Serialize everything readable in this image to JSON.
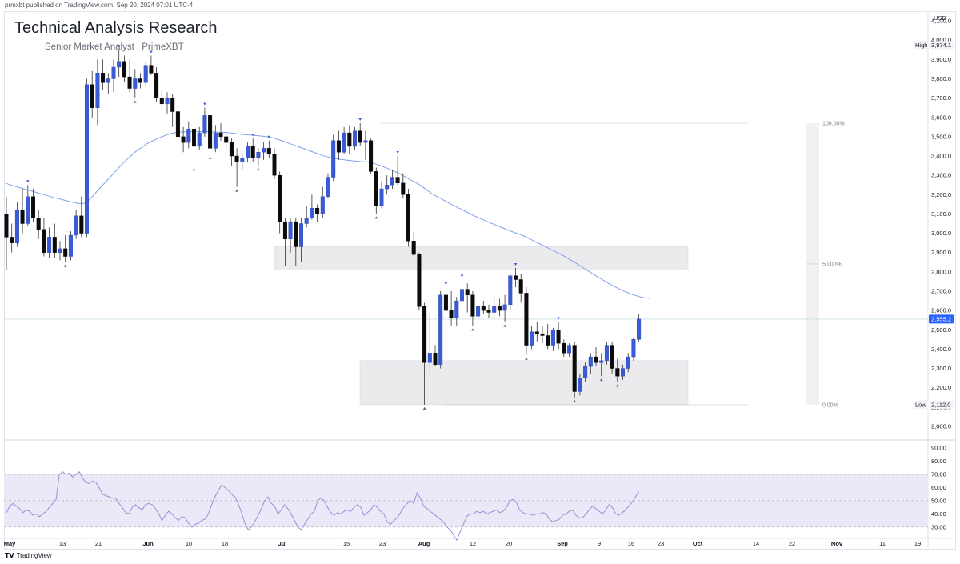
{
  "header": {
    "published_line": "prmxbt published on TradingView.com, Sep 20, 2024 07:01 UTC-4"
  },
  "title": "Technical Analysis Research",
  "subtitle": "Senior Market Analyst | PrimeXBT",
  "footer": {
    "brand": "TradingView"
  },
  "colors": {
    "bull": "#3a5bd9",
    "bear": "#0b0b0b",
    "ma": "#7fa3e8",
    "rsi": "#9b8ed6",
    "rsi_band": "#ece8f7",
    "zone": "#ebebee",
    "badge": "#2962ff"
  },
  "chart_data": [
    {
      "type": "candlestick",
      "currency": "USD",
      "ylim": [
        1950,
        4150
      ],
      "y_ticks": [
        "2,000.0",
        "2,100.0",
        "2,200.0",
        "2,300.0",
        "2,400.0",
        "2,500.0",
        "2,600.0",
        "2,700.0",
        "2,800.0",
        "2,900.0",
        "3,000.0",
        "3,100.0",
        "3,200.0",
        "3,300.0",
        "3,400.0",
        "3,500.0",
        "3,600.0",
        "3,700.0",
        "3,800.0",
        "3,900.0",
        "4,000.0",
        "4,100.0"
      ],
      "x_ticks": [
        "May",
        "13",
        "21",
        "Jun",
        "10",
        "18",
        "Jul",
        "15",
        "23",
        "Aug",
        "12",
        "20",
        "Sep",
        "9",
        "16",
        "23",
        "Oct",
        "14",
        "22",
        "Nov",
        "11",
        "19"
      ],
      "price_labels": {
        "high_label": "High",
        "high_value": "3,974.1",
        "low_label": "Low",
        "low_value": "2,112.0",
        "current_value": "2,555.2"
      },
      "fib_labels": [
        "100.00%",
        "50.00%",
        "0.00%"
      ],
      "fib_levels": [
        3570,
        2841,
        2112
      ],
      "zones": [
        {
          "name": "resistance-zone",
          "low": 2815,
          "high": 2930
        },
        {
          "name": "support-zone",
          "low": 2112,
          "high": 2340
        }
      ],
      "candles": [
        {
          "o": 3100,
          "h": 3190,
          "l": 2810,
          "c": 2980
        },
        {
          "o": 2980,
          "h": 3050,
          "l": 2900,
          "c": 2950
        },
        {
          "o": 2950,
          "h": 3160,
          "l": 2930,
          "c": 3120
        },
        {
          "o": 3120,
          "h": 3230,
          "l": 3000,
          "c": 3050
        },
        {
          "o": 3050,
          "h": 3250,
          "l": 3040,
          "c": 3190
        },
        {
          "o": 3190,
          "h": 3230,
          "l": 3060,
          "c": 3080
        },
        {
          "o": 3080,
          "h": 3120,
          "l": 2970,
          "c": 3020
        },
        {
          "o": 3020,
          "h": 3080,
          "l": 2880,
          "c": 2900
        },
        {
          "o": 2900,
          "h": 3030,
          "l": 2870,
          "c": 2980
        },
        {
          "o": 2980,
          "h": 3050,
          "l": 2870,
          "c": 2900
        },
        {
          "o": 2900,
          "h": 2960,
          "l": 2860,
          "c": 2920
        },
        {
          "o": 2920,
          "h": 2990,
          "l": 2850,
          "c": 2880
        },
        {
          "o": 2880,
          "h": 3010,
          "l": 2860,
          "c": 2990
        },
        {
          "o": 2990,
          "h": 3120,
          "l": 2970,
          "c": 3090
        },
        {
          "o": 3090,
          "h": 3190,
          "l": 2980,
          "c": 3000
        },
        {
          "o": 3000,
          "h": 3800,
          "l": 2980,
          "c": 3770
        },
        {
          "o": 3770,
          "h": 3840,
          "l": 3600,
          "c": 3650
        },
        {
          "o": 3650,
          "h": 3900,
          "l": 3560,
          "c": 3830
        },
        {
          "o": 3830,
          "h": 3900,
          "l": 3740,
          "c": 3780
        },
        {
          "o": 3780,
          "h": 3830,
          "l": 3720,
          "c": 3800
        },
        {
          "o": 3800,
          "h": 3900,
          "l": 3730,
          "c": 3860
        },
        {
          "o": 3860,
          "h": 3950,
          "l": 3810,
          "c": 3890
        },
        {
          "o": 3890,
          "h": 3920,
          "l": 3780,
          "c": 3810
        },
        {
          "o": 3810,
          "h": 3900,
          "l": 3730,
          "c": 3750
        },
        {
          "o": 3750,
          "h": 3850,
          "l": 3700,
          "c": 3800
        },
        {
          "o": 3800,
          "h": 3830,
          "l": 3750,
          "c": 3780
        },
        {
          "o": 3780,
          "h": 3890,
          "l": 3760,
          "c": 3870
        },
        {
          "o": 3870,
          "h": 3920,
          "l": 3820,
          "c": 3830
        },
        {
          "o": 3830,
          "h": 3860,
          "l": 3680,
          "c": 3700
        },
        {
          "o": 3700,
          "h": 3740,
          "l": 3640,
          "c": 3670
        },
        {
          "o": 3670,
          "h": 3730,
          "l": 3620,
          "c": 3700
        },
        {
          "o": 3700,
          "h": 3720,
          "l": 3550,
          "c": 3630
        },
        {
          "o": 3630,
          "h": 3650,
          "l": 3480,
          "c": 3500
        },
        {
          "o": 3500,
          "h": 3550,
          "l": 3420,
          "c": 3470
        },
        {
          "o": 3470,
          "h": 3580,
          "l": 3440,
          "c": 3540
        },
        {
          "o": 3540,
          "h": 3580,
          "l": 3350,
          "c": 3450
        },
        {
          "o": 3450,
          "h": 3550,
          "l": 3430,
          "c": 3520
        },
        {
          "o": 3520,
          "h": 3650,
          "l": 3500,
          "c": 3610
        },
        {
          "o": 3610,
          "h": 3640,
          "l": 3410,
          "c": 3440
        },
        {
          "o": 3440,
          "h": 3560,
          "l": 3420,
          "c": 3520
        },
        {
          "o": 3520,
          "h": 3570,
          "l": 3480,
          "c": 3500
        },
        {
          "o": 3500,
          "h": 3520,
          "l": 3440,
          "c": 3470
        },
        {
          "o": 3470,
          "h": 3490,
          "l": 3350,
          "c": 3400
        },
        {
          "o": 3400,
          "h": 3440,
          "l": 3240,
          "c": 3370
        },
        {
          "o": 3370,
          "h": 3410,
          "l": 3330,
          "c": 3390
        },
        {
          "o": 3390,
          "h": 3470,
          "l": 3370,
          "c": 3450
        },
        {
          "o": 3450,
          "h": 3490,
          "l": 3370,
          "c": 3390
        },
        {
          "o": 3390,
          "h": 3440,
          "l": 3350,
          "c": 3420
        },
        {
          "o": 3420,
          "h": 3470,
          "l": 3380,
          "c": 3440
        },
        {
          "o": 3440,
          "h": 3480,
          "l": 3390,
          "c": 3410
        },
        {
          "o": 3410,
          "h": 3440,
          "l": 3280,
          "c": 3300
        },
        {
          "o": 3300,
          "h": 3320,
          "l": 3000,
          "c": 3060
        },
        {
          "o": 3060,
          "h": 3080,
          "l": 2830,
          "c": 2970
        },
        {
          "o": 2970,
          "h": 3080,
          "l": 2900,
          "c": 3060
        },
        {
          "o": 3060,
          "h": 3080,
          "l": 2830,
          "c": 2930
        },
        {
          "o": 2930,
          "h": 3080,
          "l": 2850,
          "c": 3050
        },
        {
          "o": 3050,
          "h": 3140,
          "l": 3030,
          "c": 3080
        },
        {
          "o": 3080,
          "h": 3200,
          "l": 3070,
          "c": 3130
        },
        {
          "o": 3130,
          "h": 3150,
          "l": 3060,
          "c": 3100
        },
        {
          "o": 3100,
          "h": 3240,
          "l": 3080,
          "c": 3190
        },
        {
          "o": 3190,
          "h": 3310,
          "l": 3180,
          "c": 3290
        },
        {
          "o": 3290,
          "h": 3510,
          "l": 3270,
          "c": 3480
        },
        {
          "o": 3480,
          "h": 3530,
          "l": 3380,
          "c": 3420
        },
        {
          "o": 3420,
          "h": 3550,
          "l": 3410,
          "c": 3520
        },
        {
          "o": 3520,
          "h": 3560,
          "l": 3410,
          "c": 3450
        },
        {
          "o": 3450,
          "h": 3550,
          "l": 3430,
          "c": 3530
        },
        {
          "o": 3530,
          "h": 3570,
          "l": 3450,
          "c": 3470
        },
        {
          "o": 3470,
          "h": 3530,
          "l": 3380,
          "c": 3480
        },
        {
          "o": 3480,
          "h": 3490,
          "l": 3310,
          "c": 3320
        },
        {
          "o": 3320,
          "h": 3340,
          "l": 3100,
          "c": 3140
        },
        {
          "o": 3140,
          "h": 3270,
          "l": 3130,
          "c": 3230
        },
        {
          "o": 3230,
          "h": 3300,
          "l": 3200,
          "c": 3250
        },
        {
          "o": 3250,
          "h": 3330,
          "l": 3230,
          "c": 3290
        },
        {
          "o": 3290,
          "h": 3400,
          "l": 3250,
          "c": 3260
        },
        {
          "o": 3260,
          "h": 3310,
          "l": 3180,
          "c": 3200
        },
        {
          "o": 3200,
          "h": 3230,
          "l": 2930,
          "c": 2960
        },
        {
          "o": 2960,
          "h": 3010,
          "l": 2880,
          "c": 2890
        },
        {
          "o": 2890,
          "h": 2900,
          "l": 2600,
          "c": 2620
        },
        {
          "o": 2620,
          "h": 2640,
          "l": 2112,
          "c": 2330
        },
        {
          "o": 2330,
          "h": 2590,
          "l": 2290,
          "c": 2380
        },
        {
          "o": 2380,
          "h": 2420,
          "l": 2310,
          "c": 2320
        },
        {
          "o": 2320,
          "h": 2700,
          "l": 2300,
          "c": 2680
        },
        {
          "o": 2680,
          "h": 2720,
          "l": 2560,
          "c": 2600
        },
        {
          "o": 2600,
          "h": 2700,
          "l": 2520,
          "c": 2560
        },
        {
          "o": 2560,
          "h": 2670,
          "l": 2520,
          "c": 2650
        },
        {
          "o": 2650,
          "h": 2760,
          "l": 2620,
          "c": 2710
        },
        {
          "o": 2710,
          "h": 2740,
          "l": 2590,
          "c": 2680
        },
        {
          "o": 2680,
          "h": 2700,
          "l": 2520,
          "c": 2570
        },
        {
          "o": 2570,
          "h": 2660,
          "l": 2550,
          "c": 2620
        },
        {
          "o": 2620,
          "h": 2650,
          "l": 2580,
          "c": 2600
        },
        {
          "o": 2600,
          "h": 2630,
          "l": 2560,
          "c": 2590
        },
        {
          "o": 2590,
          "h": 2680,
          "l": 2560,
          "c": 2620
        },
        {
          "o": 2620,
          "h": 2660,
          "l": 2570,
          "c": 2600
        },
        {
          "o": 2600,
          "h": 2680,
          "l": 2540,
          "c": 2630
        },
        {
          "o": 2630,
          "h": 2790,
          "l": 2600,
          "c": 2780
        },
        {
          "o": 2780,
          "h": 2820,
          "l": 2720,
          "c": 2760
        },
        {
          "o": 2760,
          "h": 2790,
          "l": 2640,
          "c": 2690
        },
        {
          "o": 2690,
          "h": 2720,
          "l": 2370,
          "c": 2420
        },
        {
          "o": 2420,
          "h": 2520,
          "l": 2400,
          "c": 2490
        },
        {
          "o": 2490,
          "h": 2540,
          "l": 2440,
          "c": 2480
        },
        {
          "o": 2480,
          "h": 2520,
          "l": 2430,
          "c": 2470
        },
        {
          "o": 2470,
          "h": 2530,
          "l": 2400,
          "c": 2420
        },
        {
          "o": 2420,
          "h": 2510,
          "l": 2390,
          "c": 2500
        },
        {
          "o": 2500,
          "h": 2540,
          "l": 2400,
          "c": 2430
        },
        {
          "o": 2430,
          "h": 2450,
          "l": 2360,
          "c": 2380
        },
        {
          "o": 2380,
          "h": 2430,
          "l": 2360,
          "c": 2420
        },
        {
          "o": 2420,
          "h": 2440,
          "l": 2150,
          "c": 2180
        },
        {
          "o": 2180,
          "h": 2270,
          "l": 2160,
          "c": 2250
        },
        {
          "o": 2250,
          "h": 2330,
          "l": 2230,
          "c": 2310
        },
        {
          "o": 2310,
          "h": 2380,
          "l": 2270,
          "c": 2360
        },
        {
          "o": 2360,
          "h": 2410,
          "l": 2310,
          "c": 2330
        },
        {
          "o": 2330,
          "h": 2380,
          "l": 2260,
          "c": 2340
        },
        {
          "o": 2340,
          "h": 2440,
          "l": 2320,
          "c": 2420
        },
        {
          "o": 2420,
          "h": 2440,
          "l": 2270,
          "c": 2300
        },
        {
          "o": 2300,
          "h": 2350,
          "l": 2230,
          "c": 2260
        },
        {
          "o": 2260,
          "h": 2320,
          "l": 2240,
          "c": 2300
        },
        {
          "o": 2300,
          "h": 2380,
          "l": 2280,
          "c": 2360
        },
        {
          "o": 2360,
          "h": 2460,
          "l": 2340,
          "c": 2450
        },
        {
          "o": 2450,
          "h": 2580,
          "l": 2440,
          "c": 2555.2
        }
      ],
      "moving_average": [
        3258,
        3248,
        3240,
        3232,
        3224,
        3216,
        3208,
        3200,
        3192,
        3184,
        3177,
        3170,
        3163,
        3157,
        3152,
        3160,
        3190,
        3220,
        3250,
        3280,
        3310,
        3340,
        3370,
        3395,
        3420,
        3440,
        3460,
        3475,
        3488,
        3500,
        3510,
        3518,
        3523,
        3525,
        3526,
        3526,
        3526,
        3527,
        3525,
        3524,
        3523,
        3522,
        3519,
        3515,
        3512,
        3510,
        3508,
        3505,
        3502,
        3498,
        3492,
        3483,
        3473,
        3463,
        3453,
        3443,
        3433,
        3423,
        3413,
        3403,
        3395,
        3389,
        3384,
        3380,
        3377,
        3374,
        3371,
        3370,
        3366,
        3358,
        3348,
        3337,
        3326,
        3313,
        3298,
        3283,
        3268,
        3253,
        3233,
        3212,
        3195,
        3180,
        3165,
        3150,
        3136,
        3122,
        3108,
        3094,
        3081,
        3069,
        3057,
        3046,
        3034,
        3023,
        3012,
        3002,
        2992,
        2980,
        2966,
        2952,
        2938,
        2924,
        2910,
        2896,
        2882,
        2866,
        2850,
        2832,
        2814,
        2797,
        2780,
        2763,
        2746,
        2730,
        2716,
        2703,
        2691,
        2681,
        2672,
        2666,
        2663
      ]
    },
    {
      "type": "line",
      "name": "RSI",
      "ylim": [
        22,
        95
      ],
      "y_ticks": [
        "30.00",
        "40.00",
        "50.00",
        "60.00",
        "70.00",
        "80.00",
        "90.00"
      ],
      "band": [
        30,
        70
      ],
      "midline": 50,
      "values": [
        41,
        46,
        48,
        46,
        44,
        41,
        43,
        42,
        39,
        40,
        38,
        40,
        42,
        45,
        48,
        51,
        70,
        72,
        70,
        71,
        68,
        70,
        72,
        67,
        64,
        63,
        65,
        64,
        60,
        55,
        54,
        53,
        52,
        52,
        48,
        45,
        41,
        40,
        45,
        47,
        45,
        43,
        47,
        48,
        47,
        44,
        40,
        35,
        39,
        42,
        40,
        37,
        35,
        38,
        37,
        33,
        30,
        32,
        33,
        35,
        36,
        40,
        47,
        53,
        58,
        62,
        60,
        58,
        55,
        53,
        48,
        41,
        33,
        28,
        30,
        34,
        39,
        44,
        50,
        53,
        48,
        46,
        40,
        43,
        47,
        44,
        40,
        35,
        30,
        28,
        32,
        36,
        40,
        42,
        50,
        52,
        50,
        45,
        41,
        39,
        41,
        40,
        42,
        43,
        42,
        45,
        47,
        45,
        39,
        41,
        43,
        47,
        45,
        42,
        40,
        34,
        32,
        35,
        37,
        41,
        45,
        48,
        50,
        48,
        56,
        52,
        46,
        44,
        42,
        40,
        38,
        36,
        34,
        30,
        28,
        24,
        20,
        26,
        32,
        38,
        40,
        40,
        42,
        41,
        42,
        40,
        41,
        42,
        43,
        41,
        42,
        45,
        50,
        51,
        49,
        43,
        41,
        40,
        40,
        39,
        40,
        40,
        41,
        40,
        36,
        34,
        35,
        36,
        39,
        40,
        42,
        43,
        39,
        37,
        37,
        40,
        43,
        46,
        44,
        42,
        40,
        43,
        47,
        45,
        40,
        39,
        41,
        43,
        46,
        49,
        53,
        57
      ]
    }
  ]
}
